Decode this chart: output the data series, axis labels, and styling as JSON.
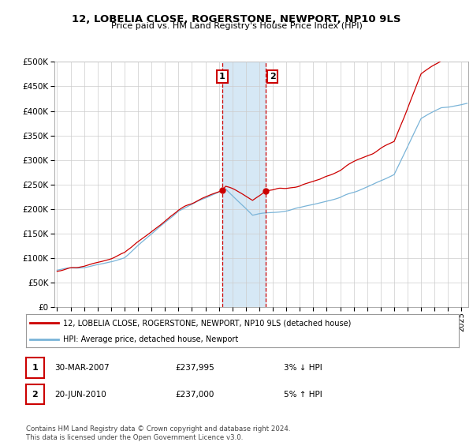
{
  "title": "12, LOBELIA CLOSE, ROGERSTONE, NEWPORT, NP10 9LS",
  "subtitle": "Price paid vs. HM Land Registry's House Price Index (HPI)",
  "legend_line1": "12, LOBELIA CLOSE, ROGERSTONE, NEWPORT, NP10 9LS (detached house)",
  "legend_line2": "HPI: Average price, detached house, Newport",
  "sale1_label": "1",
  "sale1_date": "30-MAR-2007",
  "sale1_price": "£237,995",
  "sale1_hpi": "3% ↓ HPI",
  "sale2_label": "2",
  "sale2_date": "20-JUN-2010",
  "sale2_price": "£237,000",
  "sale2_hpi": "5% ↑ HPI",
  "copyright": "Contains HM Land Registry data © Crown copyright and database right 2024.\nThis data is licensed under the Open Government Licence v3.0.",
  "hpi_color": "#7ab4d8",
  "price_color": "#cc0000",
  "highlight_color": "#d6e8f5",
  "sale1_x": 2007.25,
  "sale2_x": 2010.47,
  "sale1_y": 237995,
  "sale2_y": 237000,
  "ylim": [
    0,
    500000
  ],
  "xlim_start": 1994.8,
  "xlim_end": 2025.5,
  "background_color": "#ffffff",
  "grid_color": "#cccccc",
  "yticks": [
    0,
    50000,
    100000,
    150000,
    200000,
    250000,
    300000,
    350000,
    400000,
    450000,
    500000
  ],
  "xticks": [
    1995,
    1996,
    1997,
    1998,
    1999,
    2000,
    2001,
    2002,
    2003,
    2004,
    2005,
    2006,
    2007,
    2008,
    2009,
    2010,
    2011,
    2012,
    2013,
    2014,
    2015,
    2016,
    2017,
    2018,
    2019,
    2020,
    2021,
    2022,
    2023,
    2024,
    2025
  ]
}
